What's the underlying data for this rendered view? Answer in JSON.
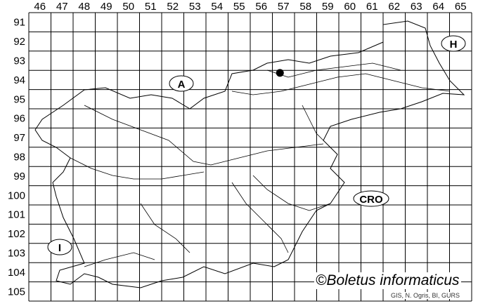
{
  "map": {
    "columns": [
      "46",
      "47",
      "48",
      "49",
      "50",
      "51",
      "52",
      "53",
      "54",
      "55",
      "56",
      "57",
      "58",
      "59",
      "60",
      "61",
      "62",
      "63",
      "64",
      "65"
    ],
    "rows": [
      "91",
      "92",
      "93",
      "94",
      "95",
      "96",
      "97",
      "98",
      "99",
      "100",
      "101",
      "102",
      "103",
      "104",
      "105"
    ],
    "country_labels": [
      {
        "id": "austria",
        "text": "A"
      },
      {
        "id": "hungary",
        "text": "H"
      },
      {
        "id": "croatia",
        "text": "CRO"
      },
      {
        "id": "italy",
        "text": "I"
      }
    ],
    "occurrence_points": [
      {
        "column": "57",
        "row": "94"
      }
    ],
    "credit": "©Boletus informaticus",
    "source": "GIS, N. Ogris, BI, GURS",
    "colors": {
      "lines": "#000000",
      "background": "#ffffff",
      "point": "#000000"
    }
  }
}
